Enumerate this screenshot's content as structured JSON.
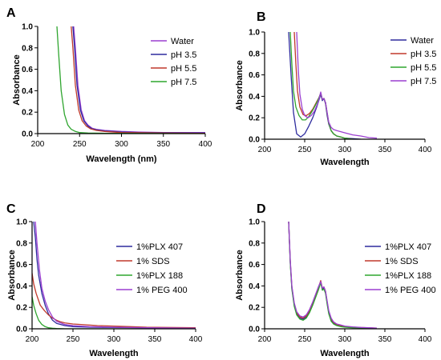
{
  "figure": {
    "panels": [
      "A",
      "B",
      "C",
      "D"
    ]
  },
  "chart_data": [
    {
      "panel": "A",
      "type": "line",
      "xlabel": "Wavelength (nm)",
      "ylabel": "Absorbance",
      "xlim": [
        200,
        400
      ],
      "ylim": [
        0,
        1.0
      ],
      "xticks": [
        "200",
        "250",
        "300",
        "350",
        "400"
      ],
      "yticks": [
        "0.0",
        "0.2",
        "0.4",
        "0.6",
        "0.8",
        "1.0"
      ],
      "legend": "right",
      "series": [
        {
          "name": "Water",
          "color": "#9b3fd1",
          "x": [
            243,
            245,
            248,
            252,
            256,
            260,
            265,
            270,
            280,
            300,
            320,
            350,
            380,
            400
          ],
          "y": [
            1.0,
            0.8,
            0.45,
            0.22,
            0.12,
            0.08,
            0.05,
            0.04,
            0.03,
            0.02,
            0.015,
            0.01,
            0.01,
            0.01
          ]
        },
        {
          "name": "pH 3.5",
          "color": "#2e2c9e",
          "x": [
            242,
            244,
            247,
            251,
            255,
            260,
            265,
            270,
            280,
            300,
            320,
            350,
            380,
            400
          ],
          "y": [
            1.0,
            0.8,
            0.45,
            0.22,
            0.12,
            0.07,
            0.045,
            0.035,
            0.025,
            0.015,
            0.01,
            0.008,
            0.006,
            0.005
          ]
        },
        {
          "name": "pH 5.5",
          "color": "#c0392b",
          "x": [
            240,
            242,
            245,
            249,
            253,
            258,
            263,
            270,
            280,
            300,
            320,
            350,
            400
          ],
          "y": [
            1.0,
            0.8,
            0.45,
            0.22,
            0.12,
            0.07,
            0.045,
            0.03,
            0.02,
            0.01,
            0.008,
            0.005,
            0.003
          ]
        },
        {
          "name": "pH 7.5",
          "color": "#2fa52f",
          "x": [
            223,
            225,
            228,
            232,
            236,
            240,
            245,
            250,
            260,
            280,
            300,
            350,
            400
          ],
          "y": [
            1.0,
            0.75,
            0.4,
            0.18,
            0.08,
            0.04,
            0.02,
            0.01,
            0.005,
            0.003,
            0.002,
            0.001,
            0.0
          ]
        }
      ]
    },
    {
      "panel": "B",
      "type": "line",
      "xlabel": "Wavelength",
      "ylabel": "Absorbance",
      "xlim": [
        200,
        400
      ],
      "ylim": [
        0,
        1.0
      ],
      "xticks": [
        "200",
        "250",
        "300",
        "350",
        "400"
      ],
      "yticks": [
        "0.0",
        "0.2",
        "0.4",
        "0.6",
        "0.8",
        "1.0"
      ],
      "legend": "right",
      "series": [
        {
          "name": "Water",
          "color": "#2e2c9e",
          "x": [
            230,
            233,
            236,
            240,
            245,
            250,
            255,
            260,
            265,
            268,
            270,
            272,
            274,
            276,
            278,
            280,
            283,
            286,
            290,
            295,
            300,
            310,
            320
          ],
          "y": [
            1.0,
            0.6,
            0.25,
            0.05,
            0.02,
            0.05,
            0.12,
            0.2,
            0.3,
            0.37,
            0.42,
            0.36,
            0.38,
            0.33,
            0.22,
            0.14,
            0.08,
            0.05,
            0.03,
            0.02,
            0.01,
            0.005,
            0.0
          ]
        },
        {
          "name": "pH 3.5",
          "color": "#c0392b",
          "x": [
            237,
            239,
            241,
            244,
            248,
            252,
            256,
            260,
            265,
            268,
            270,
            272,
            274,
            276,
            278,
            280,
            283,
            286,
            290,
            295,
            300,
            310
          ],
          "y": [
            1.0,
            0.7,
            0.45,
            0.3,
            0.23,
            0.22,
            0.24,
            0.28,
            0.35,
            0.39,
            0.43,
            0.37,
            0.38,
            0.34,
            0.24,
            0.15,
            0.08,
            0.05,
            0.03,
            0.02,
            0.01,
            0.0
          ]
        },
        {
          "name": "pH 5.5",
          "color": "#2fa52f",
          "x": [
            232,
            234,
            236,
            239,
            243,
            247,
            251,
            255,
            260,
            265,
            268,
            270,
            272,
            274,
            276,
            278,
            280,
            283,
            286,
            290,
            295,
            300,
            310
          ],
          "y": [
            1.0,
            0.7,
            0.45,
            0.3,
            0.22,
            0.18,
            0.18,
            0.21,
            0.27,
            0.34,
            0.39,
            0.43,
            0.37,
            0.38,
            0.34,
            0.24,
            0.15,
            0.08,
            0.05,
            0.03,
            0.02,
            0.01,
            0.0
          ]
        },
        {
          "name": "pH 7.5",
          "color": "#9b3fd1",
          "x": [
            240,
            242,
            244,
            247,
            250,
            254,
            258,
            262,
            266,
            268,
            270,
            272,
            274,
            276,
            278,
            280,
            283,
            286,
            290,
            300,
            310,
            320,
            330,
            340
          ],
          "y": [
            1.0,
            0.65,
            0.42,
            0.28,
            0.22,
            0.2,
            0.22,
            0.26,
            0.33,
            0.38,
            0.44,
            0.37,
            0.38,
            0.34,
            0.25,
            0.16,
            0.11,
            0.09,
            0.08,
            0.06,
            0.04,
            0.03,
            0.015,
            0.01
          ]
        }
      ]
    },
    {
      "panel": "C",
      "type": "line",
      "xlabel": "Wavelength",
      "ylabel": "Absorbance",
      "xlim": [
        200,
        400
      ],
      "ylim": [
        0,
        1.0
      ],
      "xticks": [
        "200",
        "250",
        "300",
        "350",
        "400"
      ],
      "yticks": [
        "0.0",
        "0.2",
        "0.4",
        "0.6",
        "0.8",
        "1.0"
      ],
      "legend": "right",
      "series": [
        {
          "name": "1%PLX 407",
          "color": "#2e2c9e",
          "x": [
            202,
            204,
            206,
            208,
            212,
            216,
            220,
            225,
            230,
            240,
            250,
            270,
            300,
            340,
            400
          ],
          "y": [
            1.0,
            0.85,
            0.65,
            0.5,
            0.33,
            0.22,
            0.14,
            0.08,
            0.05,
            0.03,
            0.02,
            0.015,
            0.012,
            0.01,
            0.005
          ]
        },
        {
          "name": "1% SDS",
          "color": "#c0392b",
          "x": [
            200,
            202,
            205,
            210,
            215,
            220,
            225,
            230,
            235,
            240,
            250,
            260,
            280,
            300,
            320,
            340,
            400
          ],
          "y": [
            0.52,
            0.42,
            0.33,
            0.22,
            0.17,
            0.13,
            0.1,
            0.08,
            0.065,
            0.055,
            0.045,
            0.04,
            0.03,
            0.025,
            0.02,
            0.015,
            0.01
          ]
        },
        {
          "name": "1%PLX 188",
          "color": "#2fa52f",
          "x": [
            200,
            202,
            205,
            208,
            212,
            216,
            220,
            225,
            230,
            240,
            300,
            400
          ],
          "y": [
            0.3,
            0.22,
            0.14,
            0.08,
            0.04,
            0.02,
            0.01,
            0.005,
            0.002,
            0.0,
            0.0,
            0.0
          ]
        },
        {
          "name": "1% PEG 400",
          "color": "#9b3fd1",
          "x": [
            204,
            206,
            209,
            212,
            216,
            220,
            225,
            230,
            240,
            250,
            270,
            300,
            340,
            400
          ],
          "y": [
            1.0,
            0.8,
            0.55,
            0.38,
            0.26,
            0.18,
            0.11,
            0.07,
            0.04,
            0.03,
            0.02,
            0.015,
            0.01,
            0.005
          ]
        }
      ]
    },
    {
      "panel": "D",
      "type": "line",
      "xlabel": "Wavelength",
      "ylabel": "Absorbance",
      "xlim": [
        200,
        400
      ],
      "ylim": [
        0,
        1.0
      ],
      "xticks": [
        "200",
        "250",
        "300",
        "350",
        "400"
      ],
      "yticks": [
        "0.0",
        "0.2",
        "0.4",
        "0.6",
        "0.8",
        "1.0"
      ],
      "legend": "right",
      "series": [
        {
          "name": "1%PLX 407",
          "color": "#2e2c9e",
          "x": [
            230,
            232,
            234,
            237,
            240,
            244,
            248,
            252,
            256,
            260,
            264,
            267,
            270,
            272,
            274,
            276,
            278,
            280,
            283,
            286,
            290,
            295,
            300,
            310,
            320,
            330,
            340
          ],
          "y": [
            1.0,
            0.62,
            0.38,
            0.22,
            0.14,
            0.1,
            0.09,
            0.11,
            0.16,
            0.23,
            0.31,
            0.37,
            0.44,
            0.37,
            0.38,
            0.34,
            0.24,
            0.15,
            0.08,
            0.05,
            0.035,
            0.025,
            0.02,
            0.015,
            0.01,
            0.008,
            0.005
          ]
        },
        {
          "name": "1% SDS",
          "color": "#c0392b",
          "x": [
            230,
            232,
            234,
            237,
            240,
            244,
            248,
            252,
            256,
            260,
            264,
            267,
            270,
            272,
            274,
            276,
            278,
            280,
            283,
            286,
            290,
            295,
            300,
            310,
            320,
            330,
            340
          ],
          "y": [
            1.0,
            0.63,
            0.39,
            0.23,
            0.15,
            0.11,
            0.1,
            0.12,
            0.17,
            0.24,
            0.32,
            0.38,
            0.45,
            0.38,
            0.39,
            0.35,
            0.25,
            0.16,
            0.09,
            0.06,
            0.04,
            0.03,
            0.022,
            0.016,
            0.012,
            0.009,
            0.006
          ]
        },
        {
          "name": "1%PLX 188",
          "color": "#2fa52f",
          "x": [
            230,
            232,
            234,
            237,
            240,
            244,
            248,
            252,
            256,
            260,
            264,
            267,
            270,
            272,
            274,
            276,
            278,
            280,
            283,
            286,
            290,
            295,
            300,
            310,
            320,
            330,
            340
          ],
          "y": [
            1.0,
            0.61,
            0.37,
            0.21,
            0.13,
            0.09,
            0.08,
            0.1,
            0.15,
            0.22,
            0.3,
            0.36,
            0.43,
            0.36,
            0.37,
            0.33,
            0.23,
            0.14,
            0.07,
            0.045,
            0.03,
            0.02,
            0.015,
            0.01,
            0.008,
            0.006,
            0.004
          ]
        },
        {
          "name": "1% PEG 400",
          "color": "#9b3fd1",
          "x": [
            230,
            232,
            234,
            237,
            240,
            244,
            248,
            252,
            256,
            260,
            264,
            267,
            270,
            272,
            274,
            276,
            278,
            280,
            283,
            286,
            290,
            295,
            300,
            310,
            320,
            330,
            340
          ],
          "y": [
            1.0,
            0.64,
            0.4,
            0.24,
            0.16,
            0.12,
            0.11,
            0.13,
            0.18,
            0.25,
            0.33,
            0.39,
            0.44,
            0.38,
            0.39,
            0.35,
            0.26,
            0.17,
            0.1,
            0.065,
            0.045,
            0.035,
            0.025,
            0.018,
            0.013,
            0.01,
            0.007
          ]
        }
      ]
    }
  ]
}
